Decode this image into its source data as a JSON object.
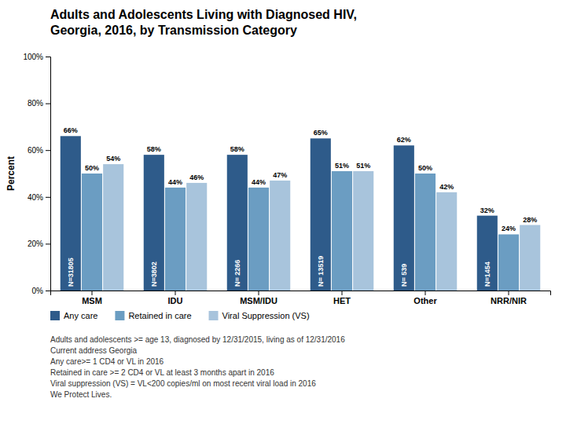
{
  "chart_data": {
    "type": "bar",
    "title": [
      "Adults and Adolescents Living with Diagnosed HIV,",
      "Georgia, 2016, by Transmission Category"
    ],
    "y_label": "Percent",
    "categories": [
      "MSM",
      "IDU",
      "MSM/IDU",
      "HET",
      "Other",
      "NRR/NIR"
    ],
    "series": [
      {
        "name": "Any care",
        "color": "#2E5B8A",
        "values": [
          66,
          58,
          58,
          65,
          62,
          32
        ],
        "value_labels": [
          "66%",
          "58%",
          "58%",
          "65%",
          "62%",
          "32%"
        ]
      },
      {
        "name": "Retained in care",
        "color": "#6B9DC2",
        "values": [
          50,
          44,
          44,
          51,
          50,
          24
        ],
        "value_labels": [
          "50%",
          "44%",
          "44%",
          "51%",
          "50%",
          "24%"
        ]
      },
      {
        "name": "Viral Suppression (VS)",
        "color": "#A8C4DC",
        "values": [
          54,
          46,
          47,
          51,
          42,
          28
        ],
        "value_labels": [
          "54%",
          "46%",
          "47%",
          "51%",
          "42%",
          "28%"
        ]
      }
    ],
    "ylim": [
      0,
      100
    ],
    "yticks": [
      {
        "value": 0,
        "label": "0%"
      },
      {
        "value": 20,
        "label": "20%"
      },
      {
        "value": 40,
        "label": "40%"
      },
      {
        "value": 60,
        "label": "60%"
      },
      {
        "value": 80,
        "label": "80%"
      },
      {
        "value": 100,
        "label": "100%"
      }
    ],
    "grid": false,
    "legend": "bottom",
    "data_labels": true,
    "annotations": [
      {
        "text": "N=31805",
        "category": "MSM"
      },
      {
        "text": "N=3802",
        "category": "IDU"
      },
      {
        "text": "N= 2266",
        "category": "MSM/IDU"
      },
      {
        "text": "N= 13519",
        "category": "HET"
      },
      {
        "text": "N= 539",
        "category": "Other"
      },
      {
        "text": "N=1454",
        "category": "NRR/NIR"
      },
      {
        "text": "Adults and adolescents >= age 13, diagnosed by 12/31/2015, living as of 12/31/2016"
      },
      {
        "text": "Current address Georgia"
      },
      {
        "text": "Any care>= 1 CD4 or VL in 2016"
      },
      {
        "text": "Retained in care >= 2 CD4 or VL at least 3 months apart in 2016"
      },
      {
        "text": "Viral suppression (VS) = VL<200 copies/ml on most recent viral load in 2016"
      },
      {
        "text": "We Protect Lives."
      }
    ]
  }
}
